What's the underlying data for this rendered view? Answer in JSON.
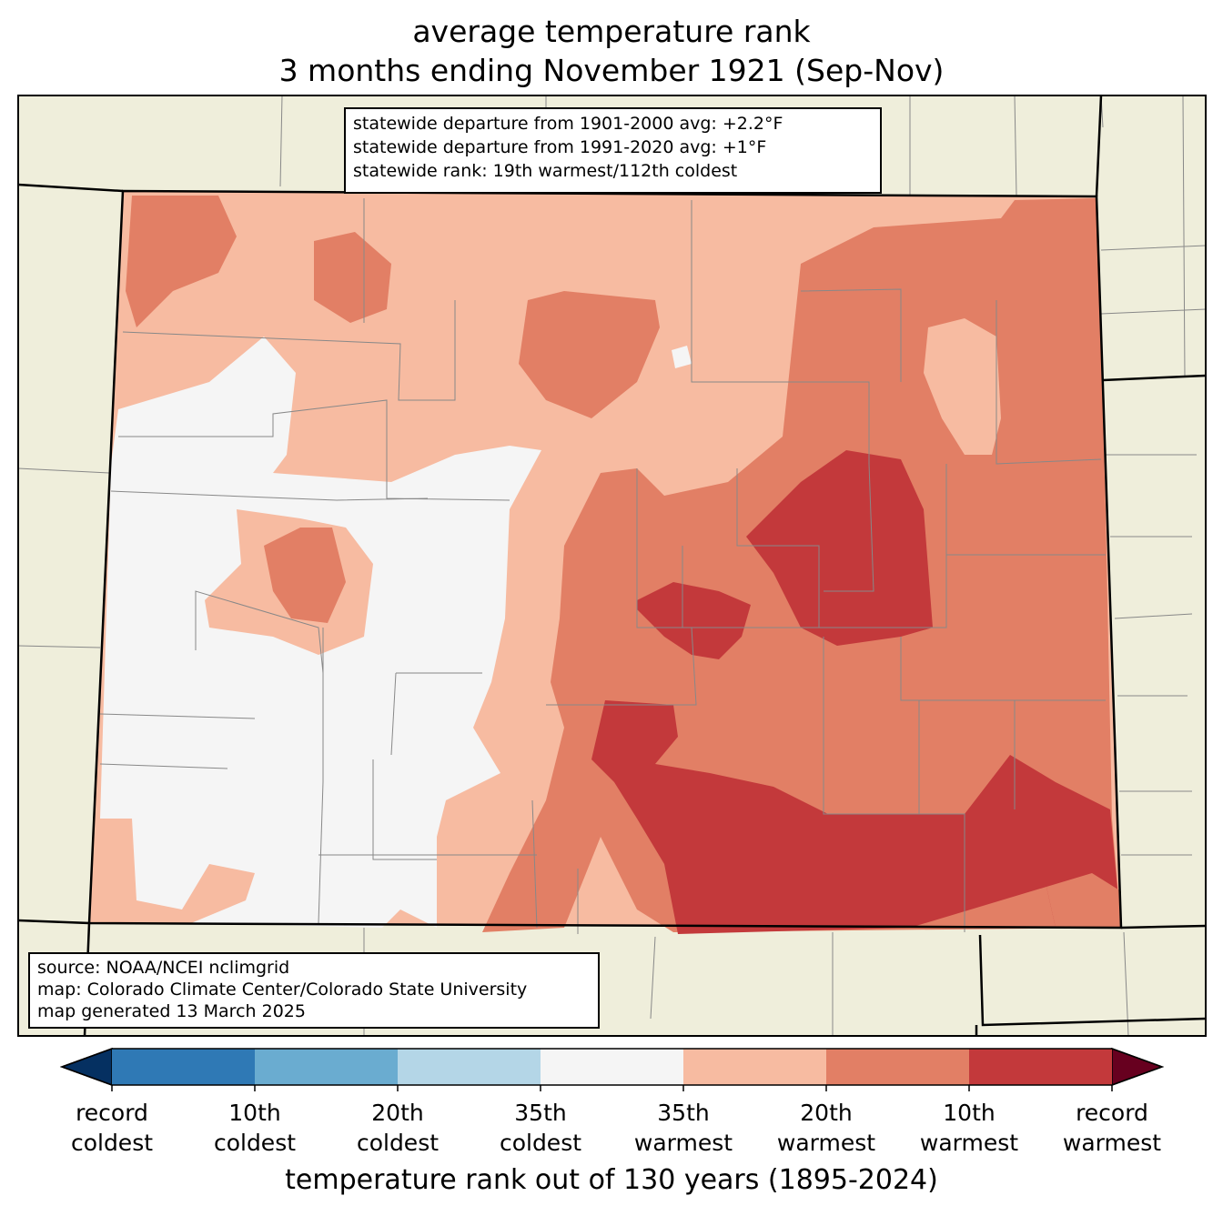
{
  "title": {
    "line1": "average temperature rank",
    "line2": "3 months ending November 1921 (Sep-Nov)"
  },
  "stats_box": {
    "line1": "statewide departure from 1901-2000 avg: +2.2°F",
    "line2": "statewide departure from 1991-2020 avg: +1°F",
    "line3": "statewide rank: 19th warmest/112th coldest"
  },
  "source_box": {
    "line1": "source: NOAA/NCEI nclimgrid",
    "line2": "map: Colorado Climate Center/Colorado State University",
    "line3": "map generated 13 March 2025"
  },
  "colorbar": {
    "title": "temperature rank out of 130 years (1895-2024)",
    "ticks": [
      {
        "top": "record",
        "bottom": "coldest"
      },
      {
        "top": "10th",
        "bottom": "coldest"
      },
      {
        "top": "20th",
        "bottom": "coldest"
      },
      {
        "top": "35th",
        "bottom": "coldest"
      },
      {
        "top": "35th",
        "bottom": "warmest"
      },
      {
        "top": "20th",
        "bottom": "warmest"
      },
      {
        "top": "10th",
        "bottom": "warmest"
      },
      {
        "top": "record",
        "bottom": "warmest"
      }
    ],
    "colors": [
      "#2f79b5",
      "#6aacd0",
      "#b4d6e7",
      "#f5f5f5",
      "#f7bba1",
      "#e27f65",
      "#c3393b"
    ],
    "under_color": "#053061",
    "over_color": "#67001f"
  },
  "map_colors": {
    "background": "#efeedb",
    "near_normal": "#f5f5f5",
    "warm35": "#f7bba1",
    "warm20": "#e27f65",
    "warm10": "#c3393b"
  }
}
